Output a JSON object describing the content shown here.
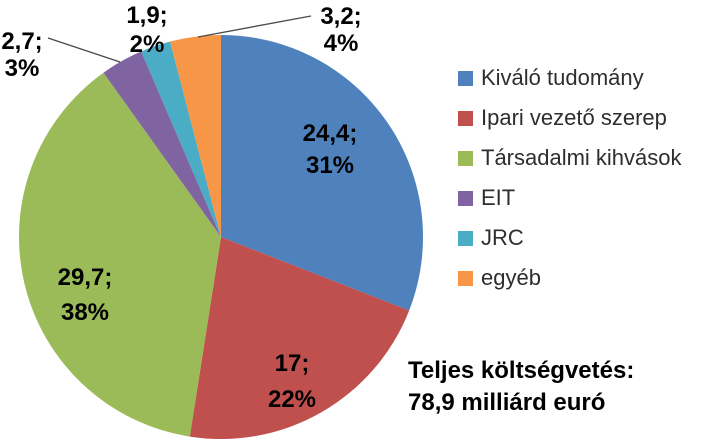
{
  "chart_data": {
    "type": "pie",
    "title": "",
    "legend_position": "right",
    "start_angle_deg": 0,
    "direction": "clockwise",
    "slices": [
      {
        "name": "Kiváló tudomány",
        "value": 24.4,
        "percent": 31,
        "value_label": "24,4;",
        "percent_label": "31%",
        "color": "#4F81BD"
      },
      {
        "name": "Ipari vezető szerep",
        "value": 17,
        "percent": 22,
        "value_label": "17;",
        "percent_label": "22%",
        "color": "#C0504D"
      },
      {
        "name": "Társadalmi kihvások",
        "value": 29.7,
        "percent": 38,
        "value_label": "29,7;",
        "percent_label": "38%",
        "color": "#9BBB59"
      },
      {
        "name": "EIT",
        "value": 2.7,
        "percent": 3,
        "value_label": "2,7;",
        "percent_label": "3%",
        "color": "#8064A2"
      },
      {
        "name": "JRC",
        "value": 1.9,
        "percent": 2,
        "value_label": "1,9;",
        "percent_label": "2%",
        "color": "#4BACC6"
      },
      {
        "name": "egyéb",
        "value": 3.2,
        "percent": 4,
        "value_label": "3,2;",
        "percent_label": "4%",
        "color": "#F79646"
      }
    ]
  },
  "annotation": {
    "line1": "Teljes költségvetés:",
    "line2": "78,9 milliárd euró"
  }
}
